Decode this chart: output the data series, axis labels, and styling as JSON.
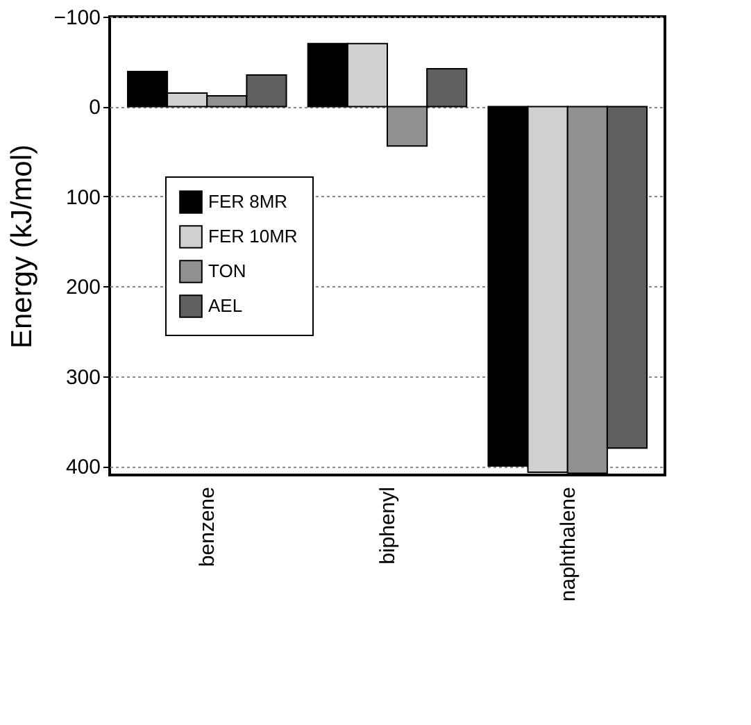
{
  "chart_data": {
    "type": "bar",
    "ylabel": "Energy (kJ/mol)",
    "categories": [
      "benzene",
      "biphenyl",
      "naphthalene"
    ],
    "series": [
      {
        "name": "FER 8MR",
        "color": "#000000",
        "values": [
          -39,
          -70,
          400
        ]
      },
      {
        "name": "FER 10MR",
        "color": "#d0d0d0",
        "values": [
          -15,
          -70,
          407
        ]
      },
      {
        "name": "TON",
        "color": "#909090",
        "values": [
          -12,
          44,
          408
        ]
      },
      {
        "name": "AEL",
        "color": "#606060",
        "values": [
          -35,
          -42,
          380
        ]
      }
    ],
    "ylim": [
      410,
      -100
    ],
    "yticks": [
      -100,
      0,
      100,
      200,
      300,
      400
    ],
    "grid": "y",
    "legend": "left"
  }
}
